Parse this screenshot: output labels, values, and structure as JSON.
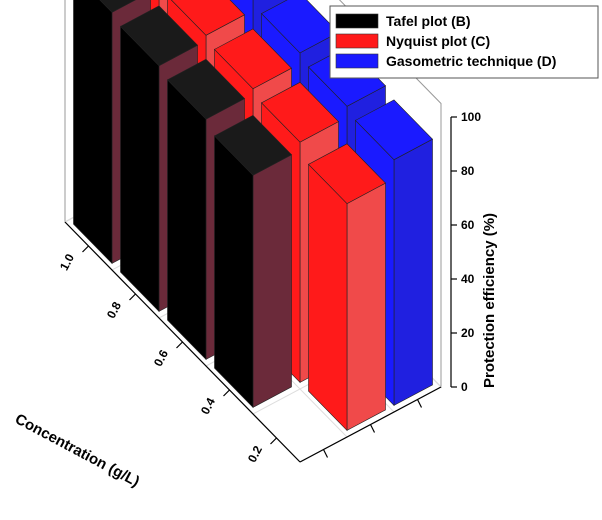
{
  "chart_data": {
    "type": "bar",
    "subtype": "3d-bar",
    "title": "",
    "xlabel": "Concentration (g/L)",
    "ylabel": "Protection efficiency (%)",
    "categories": [
      "0.2",
      "0.4",
      "0.6",
      "0.8",
      "1.0"
    ],
    "zlim": [
      0,
      100
    ],
    "zticks": [
      "0",
      "20",
      "40",
      "60",
      "80",
      "100"
    ],
    "series": [
      {
        "name": "Tafel plot (B)",
        "color": "#000000",
        "side_color": "#6b2a3a",
        "values": [
          null,
          86,
          89,
          91,
          93
        ]
      },
      {
        "name": "Nyquist plot (C)",
        "color": "#ff1a1a",
        "side_color": "#f04a4a",
        "values": [
          84,
          89,
          91,
          93,
          95
        ]
      },
      {
        "name": "Gasometric technique (D)",
        "color": "#1a1aff",
        "side_color": "#2020e0",
        "values": [
          91,
          93,
          95,
          97,
          99
        ]
      }
    ],
    "legend_position": "top-right",
    "grid": true
  }
}
